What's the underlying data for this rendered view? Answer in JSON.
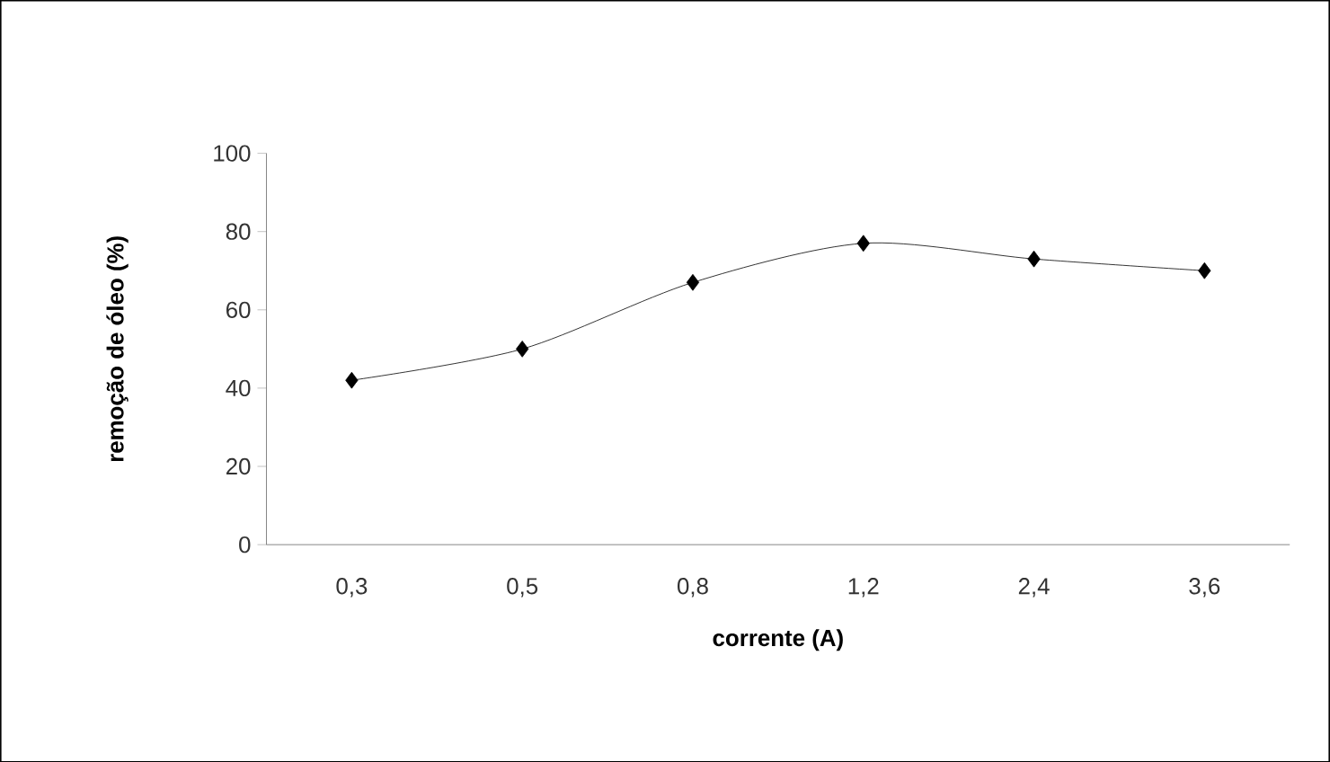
{
  "chart_data": {
    "type": "line",
    "xlabel": "corrente (A)",
    "ylabel": "remoção de óleo (%)",
    "categories": [
      "0,3",
      "0,5",
      "0,8",
      "1,2",
      "2,4",
      "3,6"
    ],
    "series": [
      {
        "color": "#000000",
        "values": [
          42,
          50,
          67,
          77,
          73,
          70
        ]
      }
    ],
    "ylim": [
      0,
      100
    ],
    "yticks": [
      0,
      20,
      40,
      60,
      80,
      100
    ],
    "grid": false,
    "marker": "diamond",
    "line_style": "solid"
  }
}
